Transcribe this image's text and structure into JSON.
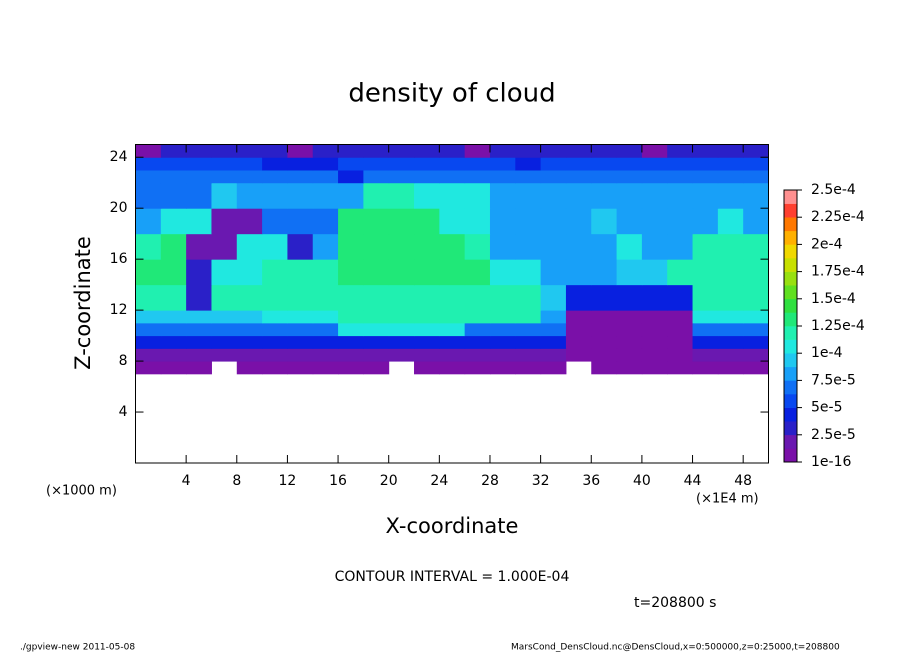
{
  "chart_data": {
    "type": "heatmap",
    "title": "density of cloud",
    "x_label": "X-coordinate",
    "y_label": "Z-coordinate",
    "x_unit_label": "(×1E4 m)",
    "y_unit_label": "(×1000 m)",
    "contour_note": "CONTOUR INTERVAL = 1.000E-04",
    "time_note": "t=208800 s",
    "footer_left": "./gpview-new  2011-05-08",
    "footer_right": "MarsCond_DensCloud.nc@DensCloud,x=0:500000,z=0:25000,t=208800",
    "xlim": [
      0,
      50
    ],
    "ylim": [
      0,
      25
    ],
    "xticks": [
      4,
      8,
      12,
      16,
      20,
      24,
      28,
      32,
      36,
      40,
      44,
      48
    ],
    "yticks": [
      4,
      8,
      12,
      16,
      20,
      24
    ],
    "x_edges": [
      0,
      2,
      4,
      6,
      8,
      10,
      12,
      14,
      16,
      18,
      20,
      22,
      24,
      26,
      28,
      30,
      32,
      34,
      36,
      38,
      40,
      42,
      44,
      46,
      48,
      50
    ],
    "y_edges": [
      7,
      8,
      9,
      10,
      11,
      12,
      14,
      16,
      18,
      20,
      22,
      23,
      24,
      25
    ],
    "values": [
      [
        1e-05,
        1e-05,
        1e-05,
        null,
        1e-05,
        1e-05,
        1e-05,
        1e-05,
        1e-05,
        1e-05,
        null,
        1e-05,
        1e-05,
        1e-05,
        1e-05,
        1e-05,
        1e-05,
        null,
        1e-05,
        1e-05,
        1e-05,
        1e-05,
        1e-05,
        1e-05,
        1e-05
      ],
      [
        2e-05,
        2e-05,
        2e-05,
        2e-05,
        2e-05,
        2e-05,
        2e-05,
        2e-05,
        2e-05,
        2e-05,
        2e-05,
        2e-05,
        2e-05,
        2e-05,
        2e-05,
        2e-05,
        2e-05,
        1e-05,
        1e-05,
        1e-05,
        1e-05,
        1e-05,
        2e-05,
        2e-05,
        2e-05
      ],
      [
        4e-05,
        4e-05,
        4e-05,
        4e-05,
        4e-05,
        4e-05,
        4e-05,
        4e-05,
        4e-05,
        4e-05,
        4e-05,
        4e-05,
        4e-05,
        4e-05,
        4e-05,
        4e-05,
        4e-05,
        1e-05,
        1e-05,
        1e-05,
        1e-05,
        1e-05,
        4e-05,
        4e-05,
        4e-05
      ],
      [
        7e-05,
        7e-05,
        7e-05,
        7e-05,
        7e-05,
        7e-05,
        7e-05,
        7e-05,
        0.00011,
        0.00011,
        0.00011,
        0.00011,
        0.00011,
        7e-05,
        7e-05,
        7e-05,
        7e-05,
        1e-05,
        1e-05,
        1e-05,
        1e-05,
        1e-05,
        7e-05,
        7e-05,
        7e-05
      ],
      [
        9e-05,
        9e-05,
        9e-05,
        9e-05,
        9e-05,
        0.00011,
        0.00011,
        0.00011,
        0.00012,
        0.00012,
        0.00012,
        0.00012,
        0.00012,
        0.00012,
        0.00012,
        0.00012,
        8e-05,
        1e-05,
        1e-05,
        1e-05,
        1e-05,
        1e-05,
        0.00011,
        0.00011,
        0.00011
      ],
      [
        0.00012,
        0.00012,
        3e-05,
        0.00012,
        0.00012,
        0.00012,
        0.00012,
        0.00012,
        0.00012,
        0.00012,
        0.00012,
        0.00012,
        0.00012,
        0.00012,
        0.00012,
        0.00012,
        9e-05,
        4e-05,
        4e-05,
        4e-05,
        4e-05,
        4e-05,
        0.00012,
        0.00012,
        0.00012
      ],
      [
        0.00013,
        0.00013,
        3e-05,
        0.00011,
        0.00011,
        0.00012,
        0.00012,
        0.00012,
        0.00013,
        0.00013,
        0.00013,
        0.00013,
        0.00013,
        0.00013,
        0.00011,
        0.00011,
        8e-05,
        8e-05,
        8e-05,
        9e-05,
        9e-05,
        0.00012,
        0.00012,
        0.00012,
        0.00012
      ],
      [
        0.00012,
        0.00013,
        2e-05,
        2e-05,
        0.00011,
        0.00011,
        3e-05,
        8e-05,
        0.00013,
        0.00013,
        0.00013,
        0.00013,
        0.00013,
        0.00012,
        8e-05,
        8e-05,
        8e-05,
        8e-05,
        8e-05,
        0.00011,
        8e-05,
        8e-05,
        0.00012,
        0.00012,
        0.00012
      ],
      [
        8e-05,
        0.00011,
        0.00011,
        2e-05,
        2e-05,
        7e-05,
        7e-05,
        7e-05,
        0.00013,
        0.00013,
        0.00013,
        0.00013,
        0.00011,
        0.00011,
        8e-05,
        8e-05,
        8e-05,
        8e-05,
        9e-05,
        8e-05,
        8e-05,
        8e-05,
        8e-05,
        0.00011,
        8e-05
      ],
      [
        7e-05,
        7e-05,
        7e-05,
        9e-05,
        8e-05,
        8e-05,
        8e-05,
        8e-05,
        8e-05,
        0.00012,
        0.00012,
        0.000105,
        0.000105,
        0.000105,
        8e-05,
        8e-05,
        8e-05,
        8e-05,
        8e-05,
        8e-05,
        8e-05,
        8e-05,
        8e-05,
        8e-05,
        8e-05
      ],
      [
        7e-05,
        7e-05,
        7e-05,
        7e-05,
        7e-05,
        7e-05,
        7e-05,
        7e-05,
        5e-05,
        7e-05,
        7e-05,
        7e-05,
        7e-05,
        7e-05,
        7e-05,
        7e-05,
        7e-05,
        7e-05,
        7e-05,
        7e-05,
        7e-05,
        7e-05,
        7e-05,
        7e-05,
        7e-05
      ],
      [
        6e-05,
        6e-05,
        6e-05,
        6e-05,
        6e-05,
        4e-05,
        4e-05,
        4e-05,
        6e-05,
        6e-05,
        6e-05,
        6e-05,
        6e-05,
        6e-05,
        6e-05,
        4e-05,
        6e-05,
        6e-05,
        6e-05,
        6e-05,
        6e-05,
        6e-05,
        6e-05,
        6e-05,
        6e-05
      ],
      [
        1e-05,
        3e-05,
        3e-05,
        3e-05,
        3e-05,
        3e-05,
        1e-05,
        3e-05,
        3e-05,
        3e-05,
        3e-05,
        3e-05,
        3e-05,
        1e-05,
        3e-05,
        3e-05,
        3e-05,
        3e-05,
        3e-05,
        3e-05,
        1e-05,
        3e-05,
        3e-05,
        3e-05,
        3e-05
      ]
    ],
    "colorbar_ticks": [
      1e-16,
      {
        "value": 2.5e-05,
        "label": "2.5e-5"
      },
      {
        "value": 5e-05,
        "label": "5e-5"
      },
      {
        "value": 7.5e-05,
        "label": "7.5e-5"
      },
      {
        "value": 0.0001,
        "label": "1e-4"
      },
      {
        "value": 0.000125,
        "label": "1.25e-4"
      },
      {
        "value": 0.00015,
        "label": "1.5e-4"
      },
      {
        "value": 0.000175,
        "label": "1.75e-4"
      },
      {
        "value": 0.0002,
        "label": "2e-4"
      },
      {
        "value": 0.000225,
        "label": "2.25e-4"
      },
      {
        "value": 0.00025,
        "label": "2.5e-4"
      }
    ],
    "colors": [
      "#7a10a8",
      "#6a18b0",
      "#2a20c8",
      "#0820e0",
      "#0848f0",
      "#1070f4",
      "#18a0f8",
      "#20c8f0",
      "#20e8e0",
      "#20f0b0",
      "#20e878",
      "#30e040",
      "#60e020",
      "#98e010",
      "#c8e000",
      "#f0d800",
      "#ffb000",
      "#ff7800",
      "#ff4030",
      "#ff9090"
    ]
  }
}
